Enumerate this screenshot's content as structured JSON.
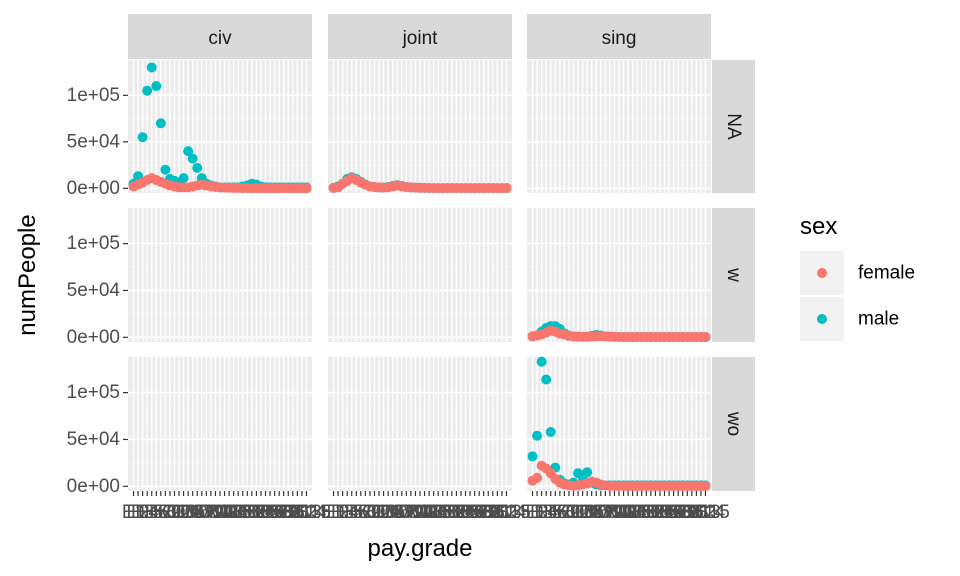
{
  "chart_data": {
    "type": "scatter",
    "title": "",
    "xlabel": "pay.grade",
    "ylabel": "numPeople",
    "ylim": [
      -5000,
      138000
    ],
    "y_ticks": [
      0,
      50000,
      100000
    ],
    "y_tick_labels": [
      "0e+00",
      "5e+04",
      "1e+05"
    ],
    "x_categories": [
      "E1",
      "E2",
      "E3",
      "E4",
      "E5",
      "E6",
      "E7",
      "E8",
      "E9",
      "O1",
      "O2",
      "O3",
      "O4",
      "O5",
      "O6",
      "O7",
      "O8",
      "O9",
      "O10",
      "W1",
      "W2",
      "W3",
      "W4",
      "W5",
      "GS1",
      "GS2",
      "GS3",
      "GS4",
      "GS5",
      "GS6",
      "GS7",
      "GS8",
      "GS9",
      "GS10",
      "GS11",
      "GS12",
      "GS13",
      "GS14",
      "GS15"
    ],
    "facet_cols": [
      "civ",
      "joint",
      "sing"
    ],
    "facet_rows": [
      "NA",
      "w",
      "wo"
    ],
    "grid": true,
    "legend": {
      "title": "sex",
      "position": "right",
      "entries": [
        {
          "label": "female",
          "color": "#F8766D"
        },
        {
          "label": "male",
          "color": "#00BFC4"
        }
      ]
    },
    "panels": [
      {
        "col": "civ",
        "row": "NA",
        "series": [
          {
            "name": "female",
            "values": [
              2000,
              4000,
              6000,
              9000,
              11000,
              9000,
              7000,
              5000,
              3000,
              2000,
              1000,
              1000,
              1000,
              2000,
              3000,
              4000,
              3000,
              2000,
              1500,
              1000,
              800,
              600,
              500,
              400,
              300,
              300,
              200,
              200,
              200,
              200,
              200,
              200,
              200,
              200,
              200,
              200,
              200,
              200,
              200
            ]
          },
          {
            "name": "male",
            "values": [
              5000,
              13000,
              55000,
              105000,
              130000,
              110000,
              70000,
              20000,
              10000,
              8000,
              5000,
              11000,
              40000,
              32000,
              22000,
              11000,
              5000,
              3000,
              2000,
              1000,
              1000,
              1000,
              1000,
              1000,
              2000,
              3000,
              5000,
              4000,
              2000,
              1000,
              1000,
              1000,
              1000,
              1000,
              1000,
              1000,
              1000,
              1000,
              1000
            ]
          }
        ]
      },
      {
        "col": "joint",
        "row": "NA",
        "series": [
          {
            "name": "female",
            "values": [
              500,
              1000,
              5000,
              8000,
              11000,
              9000,
              6000,
              4000,
              2000,
              1500,
              1000,
              800,
              1000,
              2000,
              3000,
              2000,
              1500,
              1000,
              800,
              600,
              500,
              400,
              300,
              300,
              300,
              300,
              300,
              300,
              300,
              300,
              300,
              300,
              300,
              300,
              300,
              300,
              300,
              300,
              300
            ]
          },
          {
            "name": "male",
            "values": [
              500,
              2000,
              5000,
              10000,
              12000,
              10000,
              7000,
              4000,
              2000,
              1500,
              1000,
              800,
              1500,
              2500,
              3500,
              2500,
              1500,
              1000,
              800,
              600,
              500,
              400,
              300,
              300,
              300,
              300,
              300,
              300,
              300,
              300,
              300,
              300,
              300,
              300,
              300,
              300,
              300,
              300,
              300
            ]
          }
        ]
      },
      {
        "col": "sing",
        "row": "w",
        "series": [
          {
            "name": "female",
            "values": [
              1000,
              2000,
              3000,
              5000,
              7000,
              6000,
              4000,
              3000,
              1500,
              1000,
              800,
              600,
              600,
              800,
              1000,
              1200,
              1000,
              800,
              600,
              400,
              300,
              300,
              300,
              300,
              300,
              300,
              300,
              300,
              300,
              300,
              300,
              300,
              300,
              300,
              300,
              300,
              300,
              300,
              300
            ]
          },
          {
            "name": "male",
            "values": [
              1000,
              2000,
              6000,
              10000,
              12000,
              12000,
              9000,
              4000,
              2000,
              1000,
              800,
              600,
              700,
              1500,
              2500,
              2000,
              1000,
              800,
              600,
              400,
              300,
              300,
              300,
              300,
              300,
              300,
              300,
              300,
              300,
              300,
              300,
              300,
              300,
              300,
              300,
              300,
              300,
              300,
              300
            ]
          }
        ]
      },
      {
        "col": "sing",
        "row": "wo",
        "series": [
          {
            "name": "female",
            "values": [
              6000,
              9000,
              22000,
              19000,
              14000,
              8000,
              4000,
              2000,
              1000,
              500,
              1000,
              2000,
              3000,
              5000,
              4000,
              2000,
              1000,
              500,
              400,
              300,
              300,
              300,
              300,
              300,
              300,
              300,
              300,
              300,
              300,
              300,
              300,
              300,
              300,
              300,
              300,
              300,
              300,
              300,
              300
            ]
          },
          {
            "name": "male",
            "values": [
              32000,
              54000,
              133000,
              114000,
              58000,
              20000,
              7000,
              3000,
              2000,
              4000,
              14000,
              10000,
              15000,
              4000,
              2000,
              1000,
              1000,
              1000,
              1000,
              1000,
              1000,
              1000,
              1000,
              1000,
              1000,
              1000,
              1000,
              1000,
              1000,
              1000,
              1000,
              1000,
              1000,
              1000,
              1000,
              1000,
              1000,
              1000,
              1000
            ]
          }
        ]
      }
    ]
  }
}
